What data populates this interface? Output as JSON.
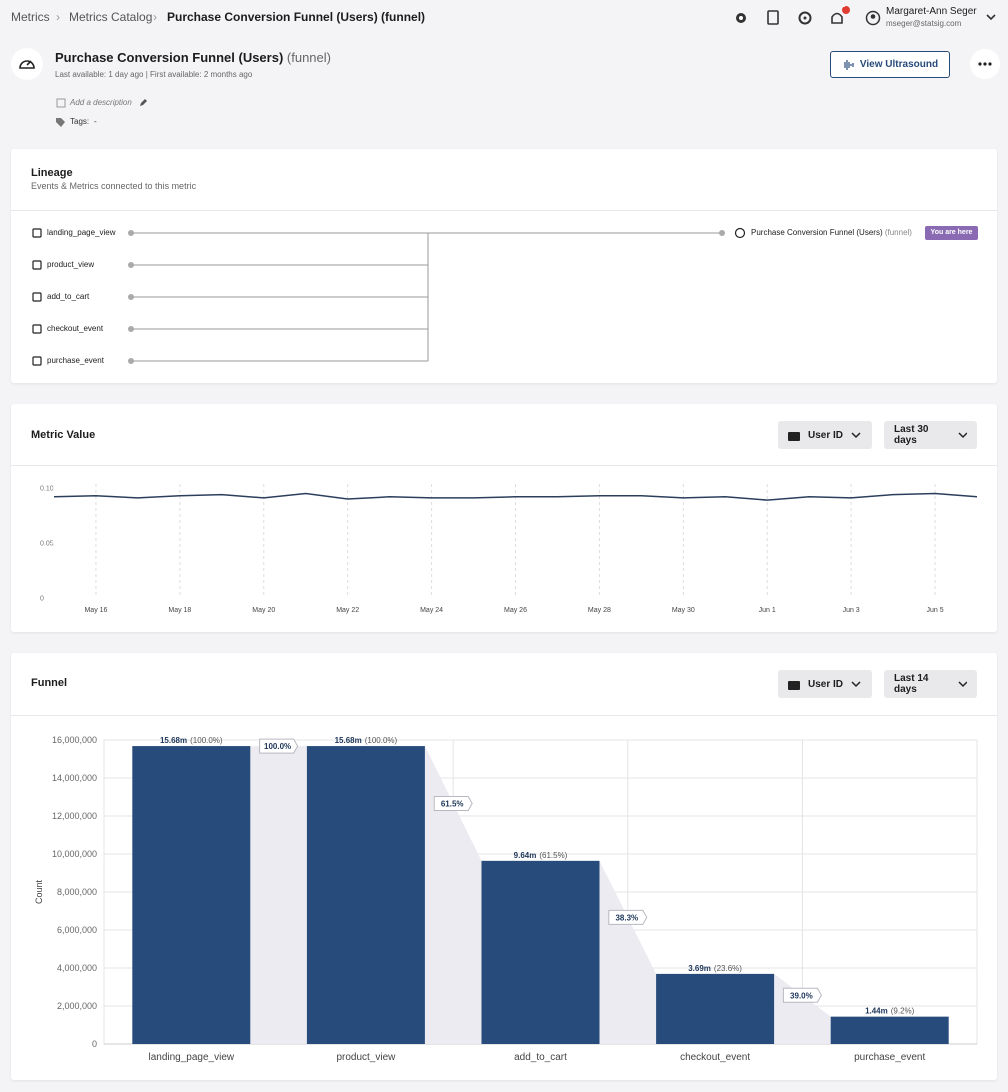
{
  "breadcrumb": [
    "Metrics",
    "Metrics Catalog",
    "Purchase Conversion Funnel (Users) (funnel)"
  ],
  "notification_count": 1,
  "user": {
    "name": "Margaret-Ann Seger",
    "email": "mseger@statsig.com"
  },
  "metric": {
    "name": "Purchase Conversion Funnel (Users)",
    "kind": "(funnel)",
    "availability": "Last available: 1 day ago | First available: 2 months ago",
    "description_placeholder": "Add a description",
    "tags_label": "Tags:",
    "tags_value": "-",
    "action": "View Ultrasound"
  },
  "lineage": {
    "title": "Lineage",
    "subtitle": "Events & Metrics connected to this metric",
    "sources": [
      "landing_page_view",
      "product_view",
      "add_to_cart",
      "checkout_event",
      "purchase_event"
    ],
    "target": {
      "name": "Purchase Conversion Funnel (Users)",
      "kind": "(funnel)",
      "badge": "You are here"
    }
  },
  "metric_value": {
    "title": "Metric Value",
    "unit_selector": "User ID",
    "range_selector": "Last 30 days"
  },
  "funnel": {
    "title": "Funnel",
    "unit_selector": "User ID",
    "range_selector": "Last 14 days"
  },
  "chart_data": [
    {
      "type": "line",
      "categories": [
        null,
        "May 16",
        null,
        "May 18",
        null,
        "May 20",
        null,
        "May 22",
        null,
        "May 24",
        null,
        "May 26",
        null,
        "May 28",
        null,
        "May 30",
        null,
        "Jun 1",
        null,
        "Jun 3",
        null,
        "Jun 5",
        null
      ],
      "values": [
        0.092,
        0.093,
        0.091,
        0.093,
        0.094,
        0.091,
        0.095,
        0.09,
        0.092,
        0.091,
        0.091,
        0.092,
        0.092,
        0.093,
        0.093,
        0.091,
        0.092,
        0.089,
        0.092,
        0.091,
        0.094,
        0.095,
        0.092
      ],
      "color": "#2b3f5c",
      "ylim": [
        0,
        0.1
      ],
      "yticks": [
        0,
        0.05,
        {
          "value": 0.1,
          "label": "0.10"
        }
      ],
      "grid": true
    },
    {
      "type": "bar",
      "categories": [
        "landing_page_view",
        "product_view",
        "add_to_cart",
        "checkout_event",
        "purchase_event"
      ],
      "values": [
        15680000,
        15680000,
        9640000,
        3690000,
        1440000
      ],
      "value_labels": [
        "15.68m",
        "15.68m",
        "9.64m",
        "3.69m",
        "1.44m"
      ],
      "percent_labels": [
        "(100.0%)",
        "(100.0%)",
        "(61.5%)",
        "(23.6%)",
        "(9.2%)"
      ],
      "step_labels": [
        "100.0%",
        "61.5%",
        "38.3%",
        "39.0%"
      ],
      "color": "#274b7a",
      "ylabel": "Count",
      "ylim": [
        0,
        16000000
      ],
      "yticks": [
        0,
        {
          "value": 2000000,
          "label": "2,000,000"
        },
        {
          "value": 4000000,
          "label": "4,000,000"
        },
        {
          "value": 6000000,
          "label": "6,000,000"
        },
        {
          "value": 8000000,
          "label": "8,000,000"
        },
        {
          "value": 10000000,
          "label": "10,000,000"
        },
        {
          "value": 12000000,
          "label": "12,000,000"
        },
        {
          "value": 14000000,
          "label": "14,000,000"
        },
        {
          "value": 16000000,
          "label": "16,000,000"
        }
      ],
      "grid": true
    }
  ]
}
